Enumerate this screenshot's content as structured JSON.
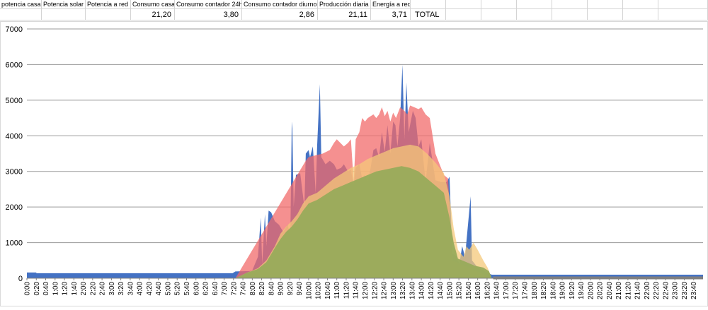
{
  "sheet": {
    "headers": [
      "potencia casa",
      "Potencia solar",
      "Potencia a red",
      "Consumo casa",
      "Consumo contador 24h",
      "Consumo contador diurno",
      "Producción diaria",
      "Energía a red"
    ],
    "values": [
      "",
      "",
      "",
      "21,20",
      "3,80",
      "2,86",
      "21,11",
      "3,71"
    ],
    "total_label": "TOTAL"
  },
  "chart_data": {
    "type": "area",
    "title": "",
    "xlabel": "",
    "ylabel": "",
    "ylim": [
      0,
      7000
    ],
    "yticks": [
      "0",
      "1000",
      "2000",
      "3000",
      "4000",
      "5000",
      "6000",
      "7000"
    ],
    "xticks": [
      "0:00",
      "0:20",
      "0:40",
      "1:00",
      "1:20",
      "1:40",
      "2:00",
      "2:20",
      "2:40",
      "3:00",
      "3:20",
      "3:40",
      "4:00",
      "4:20",
      "4:40",
      "5:00",
      "5:20",
      "5:40",
      "6:00",
      "6:20",
      "6:40",
      "7:00",
      "7:20",
      "7:40",
      "8:00",
      "8:20",
      "8:40",
      "9:00",
      "9:20",
      "9:40",
      "10:00",
      "10:20",
      "10:40",
      "11:00",
      "11:20",
      "11:40",
      "12:00",
      "12:20",
      "12:40",
      "13:00",
      "13:20",
      "13:40",
      "14:00",
      "14:20",
      "14:40",
      "15:00",
      "15:20",
      "15:40",
      "16:00",
      "16:20",
      "16:40",
      "17:00",
      "17:20",
      "17:40",
      "18:00",
      "18:20",
      "18:40",
      "19:00",
      "19:20",
      "19:40",
      "20:00",
      "20:20",
      "20:40",
      "21:00",
      "21:20",
      "21:40",
      "22:00",
      "22:20",
      "22:40",
      "23:00",
      "23:20",
      "23:40"
    ],
    "grid": true,
    "legend": "none",
    "series": [
      {
        "color": "#4472c4",
        "points": [
          [
            0,
            160
          ],
          [
            0.33,
            160
          ],
          [
            0.34,
            140
          ],
          [
            7.3,
            140
          ],
          [
            7.4,
            190
          ],
          [
            7.9,
            200
          ],
          [
            8.0,
            220
          ],
          [
            8.2,
            600
          ],
          [
            8.3,
            1700
          ],
          [
            8.35,
            400
          ],
          [
            8.45,
            1800
          ],
          [
            8.5,
            900
          ],
          [
            8.58,
            1900
          ],
          [
            8.67,
            1850
          ],
          [
            8.8,
            1600
          ],
          [
            8.95,
            1500
          ],
          [
            9.1,
            1300
          ],
          [
            9.25,
            1500
          ],
          [
            9.35,
            1200
          ],
          [
            9.4,
            4200
          ],
          [
            9.42,
            4400
          ],
          [
            9.47,
            2000
          ],
          [
            9.55,
            2900
          ],
          [
            9.7,
            2950
          ],
          [
            9.85,
            2000
          ],
          [
            9.9,
            3500
          ],
          [
            10.0,
            3600
          ],
          [
            10.05,
            3400
          ],
          [
            10.15,
            3700
          ],
          [
            10.25,
            2400
          ],
          [
            10.3,
            3700
          ],
          [
            10.4,
            5450
          ],
          [
            10.45,
            3400
          ],
          [
            10.6,
            3200
          ],
          [
            10.75,
            3300
          ],
          [
            10.9,
            3200
          ],
          [
            11.0,
            3050
          ],
          [
            11.15,
            3100
          ],
          [
            11.25,
            3200
          ],
          [
            11.4,
            3000
          ],
          [
            11.5,
            3050
          ],
          [
            11.6,
            2600
          ],
          [
            11.67,
            3100
          ],
          [
            11.8,
            3200
          ],
          [
            11.9,
            2800
          ],
          [
            12.0,
            2900
          ],
          [
            12.1,
            2700
          ],
          [
            12.2,
            3100
          ],
          [
            12.3,
            3600
          ],
          [
            12.4,
            3650
          ],
          [
            12.5,
            3400
          ],
          [
            12.6,
            4100
          ],
          [
            12.7,
            3550
          ],
          [
            12.8,
            4300
          ],
          [
            12.9,
            3500
          ],
          [
            13.0,
            4400
          ],
          [
            13.08,
            4300
          ],
          [
            13.15,
            3700
          ],
          [
            13.25,
            4500
          ],
          [
            13.33,
            6000
          ],
          [
            13.4,
            3900
          ],
          [
            13.47,
            5500
          ],
          [
            13.55,
            4100
          ],
          [
            13.7,
            4700
          ],
          [
            13.8,
            4500
          ],
          [
            13.9,
            3700
          ],
          [
            14.0,
            3900
          ],
          [
            14.15,
            2700
          ],
          [
            14.3,
            3800
          ],
          [
            14.5,
            2750
          ],
          [
            14.7,
            2700
          ],
          [
            14.9,
            2700
          ],
          [
            15.0,
            2850
          ],
          [
            15.1,
            700
          ],
          [
            15.25,
            600
          ],
          [
            15.35,
            400
          ],
          [
            15.45,
            900
          ],
          [
            15.55,
            600
          ],
          [
            15.75,
            2300
          ],
          [
            15.8,
            500
          ],
          [
            16.0,
            300
          ],
          [
            16.25,
            200
          ],
          [
            16.35,
            150
          ],
          [
            16.5,
            100
          ],
          [
            24,
            100
          ]
        ]
      },
      {
        "color": "#f26b6b",
        "points": [
          [
            0,
            0
          ],
          [
            7.4,
            0
          ],
          [
            9.9,
            3300
          ],
          [
            10.0,
            3400
          ],
          [
            10.5,
            3500
          ],
          [
            10.75,
            3600
          ],
          [
            10.9,
            3800
          ],
          [
            11.0,
            3900
          ],
          [
            11.25,
            3700
          ],
          [
            11.4,
            3800
          ],
          [
            11.5,
            3900
          ],
          [
            11.6,
            2700
          ],
          [
            11.67,
            3900
          ],
          [
            11.8,
            4100
          ],
          [
            11.9,
            4500
          ],
          [
            12.0,
            4400
          ],
          [
            12.1,
            4500
          ],
          [
            12.2,
            4550
          ],
          [
            12.3,
            4600
          ],
          [
            12.4,
            4500
          ],
          [
            12.5,
            4600
          ],
          [
            12.6,
            4800
          ],
          [
            12.7,
            4550
          ],
          [
            12.8,
            4700
          ],
          [
            12.9,
            4400
          ],
          [
            13.0,
            4650
          ],
          [
            13.1,
            4500
          ],
          [
            13.25,
            4800
          ],
          [
            13.4,
            4700
          ],
          [
            13.5,
            4600
          ],
          [
            13.6,
            4850
          ],
          [
            13.75,
            4800
          ],
          [
            13.9,
            4750
          ],
          [
            14.0,
            4800
          ],
          [
            14.15,
            4600
          ],
          [
            14.3,
            4500
          ],
          [
            14.4,
            4000
          ],
          [
            14.5,
            3500
          ],
          [
            14.65,
            3200
          ],
          [
            14.8,
            2900
          ],
          [
            14.95,
            2800
          ],
          [
            15.1,
            500
          ],
          [
            16.5,
            0
          ],
          [
            24,
            0
          ]
        ]
      },
      {
        "color": "#f4c87a",
        "points": [
          [
            0,
            0
          ],
          [
            7.4,
            0
          ],
          [
            7.8,
            150
          ],
          [
            8.2,
            280
          ],
          [
            8.5,
            500
          ],
          [
            8.8,
            900
          ],
          [
            9.0,
            1250
          ],
          [
            9.2,
            1450
          ],
          [
            9.4,
            1600
          ],
          [
            9.6,
            1800
          ],
          [
            9.8,
            2100
          ],
          [
            10.0,
            2300
          ],
          [
            10.3,
            2400
          ],
          [
            10.6,
            2600
          ],
          [
            10.9,
            2800
          ],
          [
            11.2,
            2950
          ],
          [
            11.5,
            3100
          ],
          [
            11.8,
            3200
          ],
          [
            12.1,
            3350
          ],
          [
            12.4,
            3450
          ],
          [
            12.7,
            3550
          ],
          [
            13.0,
            3650
          ],
          [
            13.3,
            3700
          ],
          [
            13.6,
            3750
          ],
          [
            13.9,
            3700
          ],
          [
            14.2,
            3500
          ],
          [
            14.5,
            3250
          ],
          [
            14.8,
            2950
          ],
          [
            15.0,
            2300
          ],
          [
            15.15,
            1400
          ],
          [
            15.3,
            800
          ],
          [
            15.5,
            600
          ],
          [
            15.6,
            900
          ],
          [
            15.7,
            800
          ],
          [
            15.85,
            1000
          ],
          [
            16.0,
            800
          ],
          [
            16.2,
            500
          ],
          [
            16.35,
            300
          ],
          [
            16.5,
            0
          ],
          [
            24,
            0
          ]
        ]
      },
      {
        "color": "#98ab5b",
        "points": [
          [
            0,
            0
          ],
          [
            7.4,
            0
          ],
          [
            7.8,
            150
          ],
          [
            8.2,
            260
          ],
          [
            8.5,
            450
          ],
          [
            8.8,
            850
          ],
          [
            9.0,
            1100
          ],
          [
            9.2,
            1300
          ],
          [
            9.4,
            1450
          ],
          [
            9.6,
            1650
          ],
          [
            9.8,
            1900
          ],
          [
            10.0,
            2100
          ],
          [
            10.3,
            2200
          ],
          [
            10.6,
            2350
          ],
          [
            10.9,
            2500
          ],
          [
            11.2,
            2600
          ],
          [
            11.5,
            2700
          ],
          [
            11.8,
            2800
          ],
          [
            12.1,
            2900
          ],
          [
            12.4,
            3000
          ],
          [
            12.7,
            3050
          ],
          [
            13.0,
            3100
          ],
          [
            13.3,
            3150
          ],
          [
            13.6,
            3100
          ],
          [
            13.9,
            3000
          ],
          [
            14.2,
            2800
          ],
          [
            14.5,
            2600
          ],
          [
            14.8,
            2400
          ],
          [
            15.0,
            1700
          ],
          [
            15.15,
            1000
          ],
          [
            15.3,
            550
          ],
          [
            15.6,
            450
          ],
          [
            15.9,
            350
          ],
          [
            16.2,
            300
          ],
          [
            16.4,
            200
          ],
          [
            16.5,
            0
          ],
          [
            24,
            0
          ]
        ]
      }
    ]
  }
}
